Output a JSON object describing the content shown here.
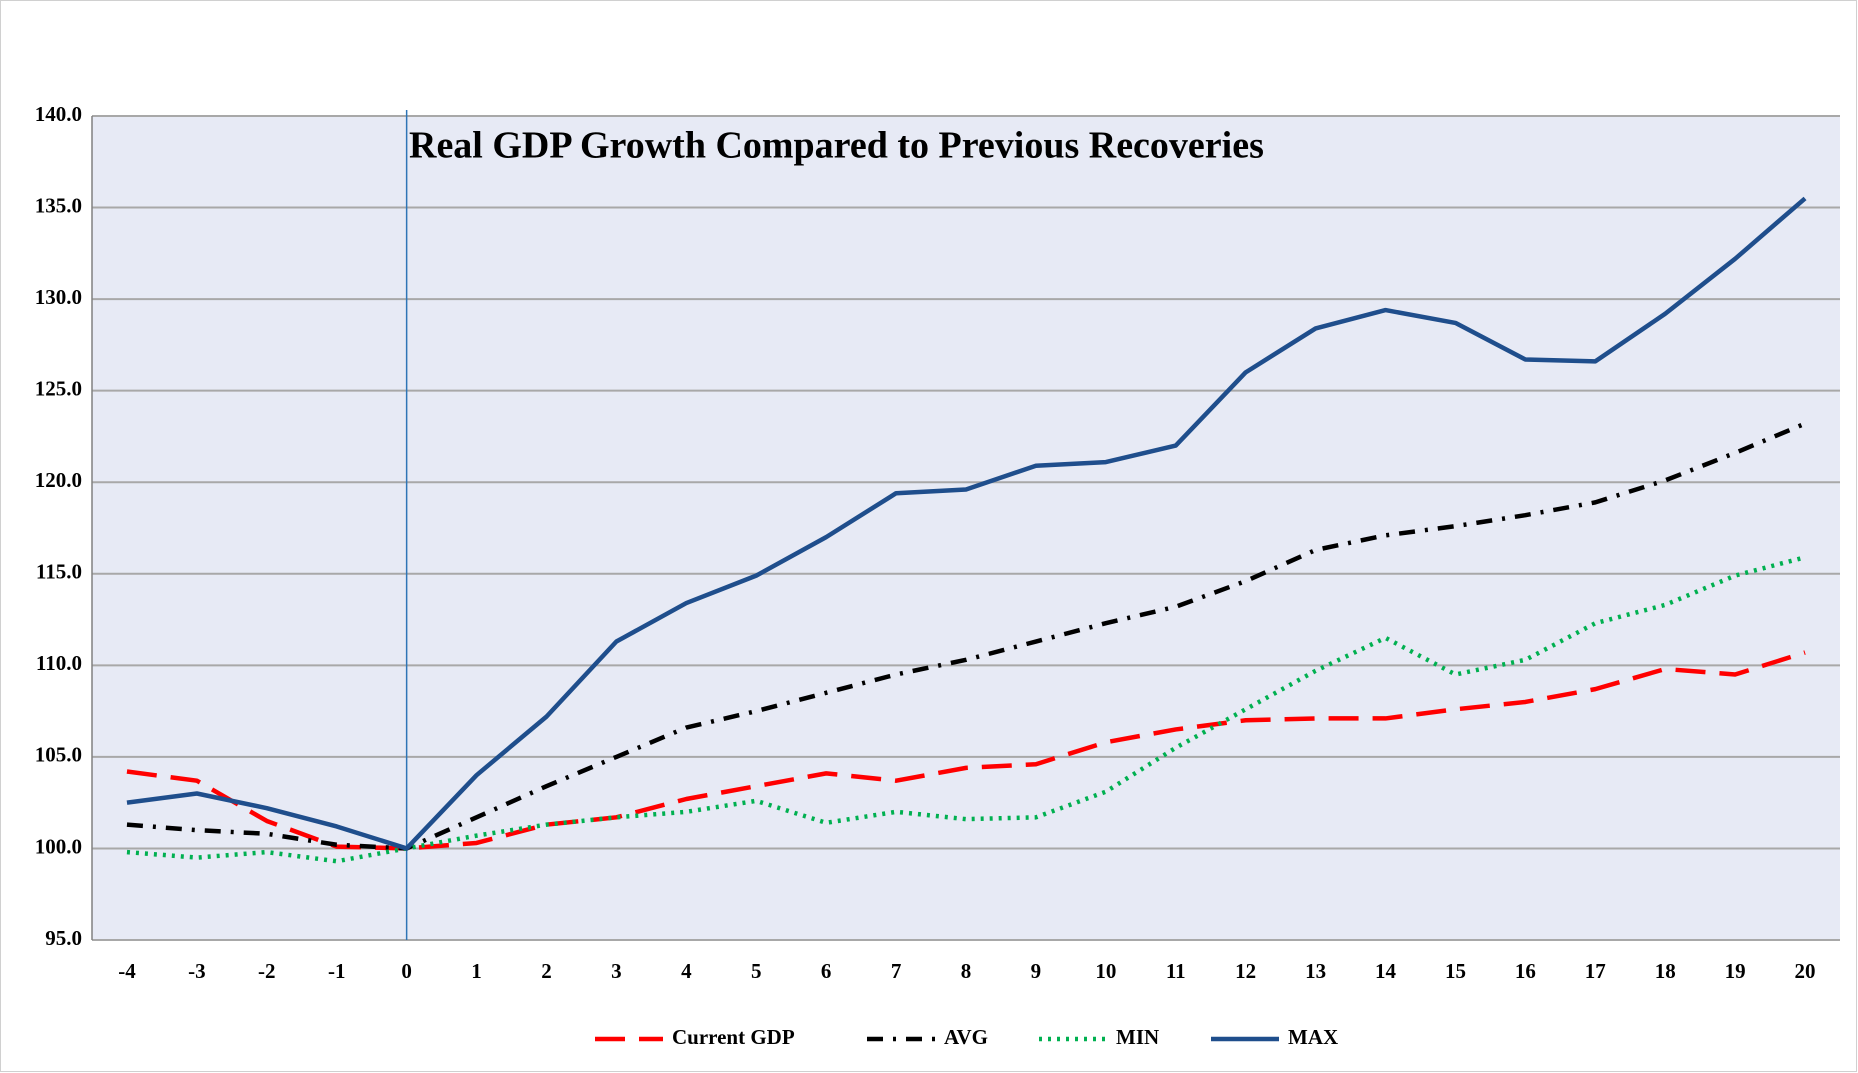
{
  "chart_data": {
    "type": "line",
    "title": "Real GDP Growth Compared to Previous Recoveries",
    "x": [
      -4,
      -3,
      -2,
      -1,
      0,
      1,
      2,
      3,
      4,
      5,
      6,
      7,
      8,
      9,
      10,
      11,
      12,
      13,
      14,
      15,
      16,
      17,
      18,
      19,
      20
    ],
    "series": [
      {
        "name": "Current GDP",
        "color": "#ff0000",
        "style": "dashed",
        "values": [
          104.2,
          103.7,
          101.5,
          100.1,
          100,
          100.3,
          101.3,
          101.7,
          102.7,
          103.4,
          104.1,
          103.7,
          104.4,
          104.6,
          105.8,
          106.5,
          107.0,
          107.1,
          107.1,
          107.6,
          108.0,
          108.7,
          109.8,
          109.5,
          110.7
        ]
      },
      {
        "name": "AVG",
        "color": "#000000",
        "style": "dashdot",
        "values": [
          101.3,
          101.0,
          100.8,
          100.2,
          100,
          101.7,
          103.4,
          105.0,
          106.6,
          107.5,
          108.5,
          109.5,
          110.3,
          111.3,
          112.3,
          113.2,
          114.6,
          116.3,
          117.1,
          117.6,
          118.2,
          118.9,
          120.1,
          121.6,
          123.2
        ]
      },
      {
        "name": "MIN",
        "color": "#00b050",
        "style": "dotted",
        "values": [
          99.8,
          99.5,
          99.8,
          99.3,
          100,
          100.7,
          101.3,
          101.7,
          102.0,
          102.6,
          101.4,
          102.0,
          101.6,
          101.7,
          103.1,
          105.5,
          107.6,
          109.7,
          111.5,
          109.5,
          110.3,
          112.3,
          113.3,
          114.9,
          115.9
        ]
      },
      {
        "name": "MAX",
        "color": "#1f4e8c",
        "style": "solid",
        "values": [
          102.5,
          103.0,
          102.2,
          101.2,
          100,
          104.0,
          107.2,
          111.3,
          113.4,
          114.9,
          117.0,
          119.4,
          119.6,
          120.9,
          121.1,
          122.0,
          126.0,
          128.4,
          129.4,
          128.7,
          126.7,
          126.6,
          129.2,
          132.2,
          135.5
        ]
      }
    ],
    "vline": 0,
    "ylim": [
      95,
      140
    ],
    "yticks": [
      {
        "value": 95,
        "label": "95.0"
      },
      {
        "value": 100,
        "label": "100.0"
      },
      {
        "value": 105,
        "label": "105.0"
      },
      {
        "value": 110,
        "label": "110.0"
      },
      {
        "value": 115,
        "label": "115.0"
      },
      {
        "value": 120,
        "label": "120.0"
      },
      {
        "value": 125,
        "label": "125.0"
      },
      {
        "value": 130,
        "label": "130.0"
      },
      {
        "value": 135,
        "label": "135.0"
      },
      {
        "value": 140,
        "label": "140.0"
      }
    ],
    "grid": true,
    "legend": "bottom"
  }
}
